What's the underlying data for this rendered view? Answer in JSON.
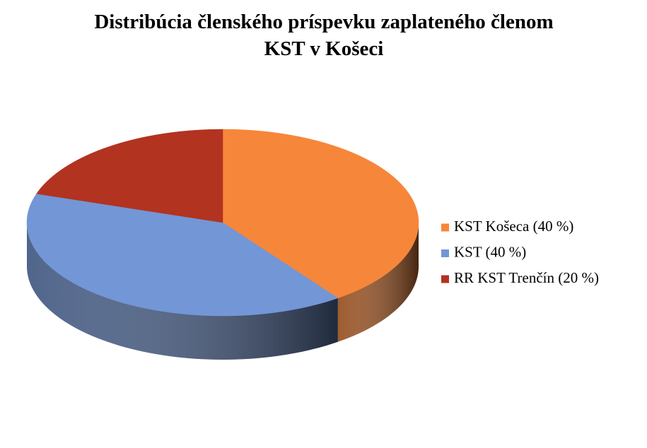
{
  "chart_data": {
    "type": "pie",
    "title": "Distribúcia členského príspevku zaplateného členom KST v Košeci",
    "categories": [
      "KST Košeca (40 %)",
      "KST (40 %)",
      "RR KST Trenčín (20 %)"
    ],
    "values": [
      40,
      40,
      20
    ],
    "colors": [
      "#f6863a",
      "#7396d6",
      "#b23320"
    ],
    "legend": "right"
  }
}
